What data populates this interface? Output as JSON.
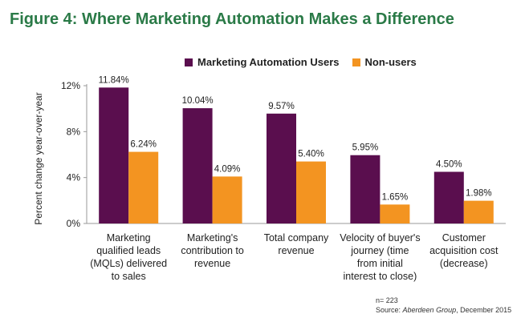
{
  "title": "Figure 4: Where Marketing Automation Makes a Difference",
  "legend": [
    {
      "label": "Marketing Automation Users",
      "color": "#5a0e4e"
    },
    {
      "label": "Non-users",
      "color": "#f39421"
    }
  ],
  "note_n": "n= 223",
  "source_prefix": "Source: ",
  "source_name": "Aberdeen Group",
  "source_date": ", December 2015",
  "chart_data": {
    "type": "bar",
    "ylabel": "Percent change year-over-year",
    "ylim": [
      0,
      12
    ],
    "yticks": [
      "0%",
      "4%",
      "8%",
      "12%"
    ],
    "categories": [
      [
        "Marketing",
        "qualified leads",
        "(MQLs) delivered",
        "to sales"
      ],
      [
        "Marketing's",
        "contribution to",
        "revenue"
      ],
      [
        "Total company",
        "revenue"
      ],
      [
        "Velocity of buyer's",
        "journey (time",
        "from initial",
        "interest to close)"
      ],
      [
        "Customer",
        "acquisition cost",
        "(decrease)"
      ]
    ],
    "series": [
      {
        "name": "Marketing Automation Users",
        "color": "#5a0e4e",
        "values": [
          11.84,
          10.04,
          9.57,
          5.95,
          4.5
        ],
        "labels": [
          "11.84%",
          "10.04%",
          "9.57%",
          "5.95%",
          "4.50%"
        ]
      },
      {
        "name": "Non-users",
        "color": "#f39421",
        "values": [
          6.24,
          4.09,
          5.4,
          1.65,
          1.98
        ],
        "labels": [
          "6.24%",
          "4.09%",
          "5.40%",
          "1.65%",
          "1.98%"
        ]
      }
    ]
  }
}
